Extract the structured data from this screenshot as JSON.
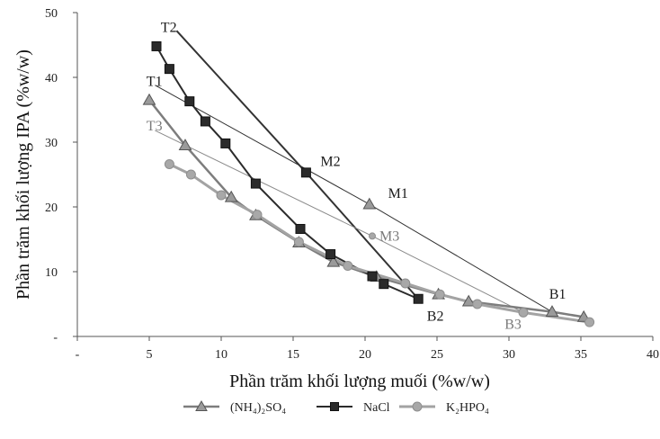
{
  "chart_data": {
    "type": "scatter",
    "title": "",
    "xlabel": "Phần trăm khối lượng muối (%w/w)",
    "ylabel": "Phần trăm khối lượng IPA (%w/w)",
    "xlim": [
      0,
      40
    ],
    "ylim": [
      0,
      50
    ],
    "x_tick_labels": [
      "-",
      "5",
      "10",
      "15",
      "20",
      "25",
      "30",
      "35",
      "40"
    ],
    "y_tick_labels": [
      "-",
      "10",
      "20",
      "30",
      "40",
      "50"
    ],
    "grid": false,
    "legend_position": "bottom",
    "colors": {
      "(NH4)2SO4": "#9a9a9a",
      "NaCl": "#2b2b2b",
      "K2HPO4": "#a8a8a8",
      "tie_line_dark": "#333333",
      "tie_line_light": "#8a8a8a"
    },
    "series": [
      {
        "name": "(NH₄)₂SO₄",
        "marker": "triangle",
        "x": [
          5.0,
          7.5,
          10.7,
          12.4,
          15.4,
          17.8,
          20.8,
          25.1,
          27.2,
          33.0,
          35.2
        ],
        "y": [
          36.5,
          29.5,
          21.5,
          18.7,
          14.5,
          11.5,
          9.2,
          6.5,
          5.4,
          3.8,
          3.0
        ]
      },
      {
        "name": "NaCl",
        "marker": "square",
        "x": [
          5.5,
          6.4,
          7.8,
          8.9,
          10.3,
          12.4,
          15.5,
          17.6,
          20.5,
          21.3,
          23.7
        ],
        "y": [
          44.8,
          41.3,
          36.3,
          33.2,
          29.8,
          23.6,
          16.6,
          12.7,
          9.3,
          8.1,
          5.8
        ]
      },
      {
        "name": "K₂HPO₄",
        "marker": "circle",
        "x": [
          6.4,
          7.9,
          10.0,
          12.5,
          15.4,
          18.8,
          22.8,
          25.2,
          27.8,
          31.0,
          35.6
        ],
        "y": [
          26.6,
          25.0,
          21.8,
          18.8,
          14.6,
          10.9,
          8.2,
          6.5,
          5.0,
          3.7,
          2.2
        ]
      }
    ],
    "tie_lines": [
      {
        "from": "T1",
        "through": "M1",
        "to": "B1",
        "x": [
          5.4,
          20.3,
          33.0
        ],
        "y": [
          38.8,
          20.4,
          3.8
        ],
        "tone": "dark"
      },
      {
        "from": "T2",
        "through": "M2",
        "to": "B2",
        "x": [
          6.9,
          15.9,
          23.7
        ],
        "y": [
          47.2,
          25.3,
          5.8
        ],
        "tone": "dark"
      },
      {
        "from": "T3",
        "through": "M3",
        "to": "B3",
        "x": [
          5.4,
          20.5,
          31.0
        ],
        "y": [
          31.8,
          15.5,
          3.7
        ],
        "tone": "light"
      }
    ],
    "mix_points": [
      {
        "label": "M1",
        "marker": "triangle",
        "x": 20.3,
        "y": 20.4
      },
      {
        "label": "M2",
        "marker": "square",
        "x": 15.9,
        "y": 25.3
      },
      {
        "label": "M3",
        "marker": "circle",
        "x": 20.5,
        "y": 15.5
      }
    ],
    "annotations": [
      {
        "text": "T1",
        "x": 4.8,
        "y": 38.7,
        "tone": "dark"
      },
      {
        "text": "T2",
        "x": 5.8,
        "y": 47.0,
        "tone": "dark"
      },
      {
        "text": "T3",
        "x": 4.8,
        "y": 31.8,
        "tone": "light"
      },
      {
        "text": "M1",
        "x": 21.6,
        "y": 21.4,
        "tone": "dark"
      },
      {
        "text": "M2",
        "x": 16.9,
        "y": 26.3,
        "tone": "dark"
      },
      {
        "text": "M3",
        "x": 21.0,
        "y": 14.8,
        "tone": "light"
      },
      {
        "text": "B1",
        "x": 32.8,
        "y": 5.8,
        "tone": "dark"
      },
      {
        "text": "B2",
        "x": 24.3,
        "y": 2.4,
        "tone": "dark"
      },
      {
        "text": "B3",
        "x": 29.7,
        "y": 1.2,
        "tone": "light"
      }
    ]
  }
}
